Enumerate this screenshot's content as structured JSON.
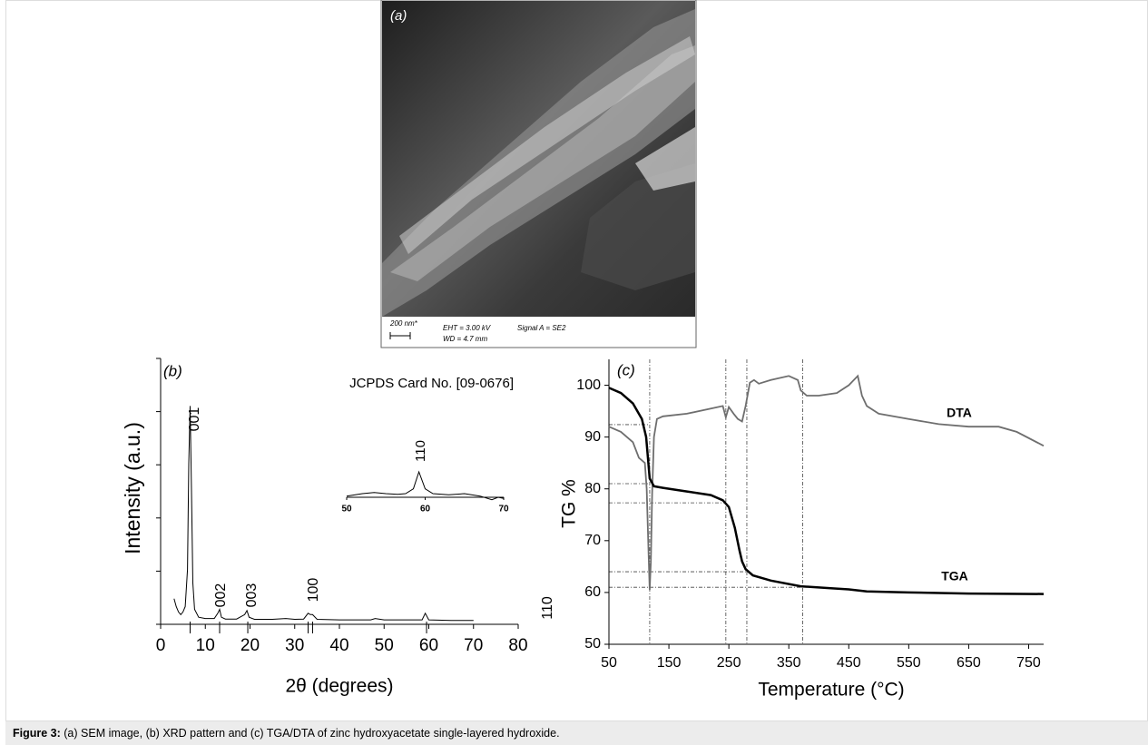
{
  "sem_image": {
    "panel": "(a)",
    "scale": "200 nm*",
    "eht": "EHT =  3.00 kV",
    "signal": "Signal A = SE2",
    "wd": "WD =  4.7 mm"
  },
  "chart_data": [
    {
      "type": "line",
      "panel": "(b)",
      "annotation": "JCPDS Card No. [09-0676]",
      "xlabel": "2θ (degrees)",
      "ylabel": "Intensity (a.u.)",
      "xlim": [
        0,
        80
      ],
      "xticks": [
        0,
        10,
        20,
        30,
        40,
        50,
        60,
        70,
        80
      ],
      "ylim": [
        0,
        100
      ],
      "color": "#000000",
      "x": [
        3,
        3.5,
        4,
        4.5,
        5,
        5.5,
        6,
        6.3,
        6.6,
        6.9,
        7.2,
        7.6,
        8.5,
        10,
        12,
        12.8,
        13.2,
        13.6,
        14.5,
        17,
        18.8,
        19.3,
        19.8,
        21,
        25,
        28,
        30,
        32,
        33,
        33.5,
        34,
        35,
        40,
        47,
        48,
        50,
        55,
        58.5,
        59.2,
        60,
        65,
        70
      ],
      "values": [
        9,
        6,
        4,
        3,
        4,
        6,
        20,
        60,
        82,
        50,
        15,
        5,
        2,
        1.5,
        1.5,
        3.5,
        5,
        2,
        1.3,
        1.3,
        3,
        4.5,
        2,
        1.2,
        1.2,
        1.5,
        1.2,
        1.3,
        3.5,
        3,
        3,
        1.2,
        1,
        1,
        1.5,
        1,
        1,
        1,
        3.5,
        1,
        0.8,
        0.8
      ],
      "reference_peaks": [
        6.6,
        13.2,
        19.5,
        33,
        34,
        59.5
      ],
      "peak_labels": [
        "001",
        "002",
        "003",
        "100",
        "110"
      ],
      "inset": {
        "xlim": [
          50,
          70
        ],
        "xticks": [
          50,
          60,
          70
        ],
        "ylim": [
          0,
          30
        ],
        "label": "110",
        "x": [
          50,
          52,
          53.5,
          55,
          56.5,
          57.5,
          58.5,
          59.2,
          60,
          61,
          63,
          65,
          67,
          68.5,
          69.3,
          70
        ],
        "values": [
          4,
          6,
          7,
          6,
          5.5,
          6,
          10,
          24,
          10,
          6,
          5,
          6,
          4,
          1,
          3,
          2
        ]
      }
    },
    {
      "type": "line",
      "panel": "(c)",
      "xlabel": "Temperature (°C)",
      "ylabel": "TG %",
      "xlim": [
        50,
        775
      ],
      "xticks": [
        50,
        150,
        250,
        350,
        450,
        550,
        650,
        750
      ],
      "ylim": [
        50,
        105
      ],
      "yticks": [
        50,
        60,
        70,
        80,
        90,
        100
      ],
      "series": [
        {
          "name": "DTA",
          "color": "#6e6e6e",
          "x": [
            50,
            70,
            90,
            100,
            105,
            110,
            113,
            116,
            118,
            120,
            122,
            125,
            130,
            140,
            180,
            220,
            240,
            245,
            250,
            258,
            265,
            272,
            278,
            285,
            292,
            300,
            320,
            350,
            365,
            370,
            380,
            400,
            430,
            450,
            465,
            472,
            480,
            500,
            550,
            600,
            650,
            700,
            730,
            775
          ],
          "values": [
            92,
            91,
            89,
            86,
            85.5,
            85,
            80,
            68,
            60.5,
            66,
            79,
            90,
            93.5,
            94,
            94.5,
            95.5,
            96,
            93.8,
            95.8,
            94.5,
            93.5,
            93,
            96,
            100.5,
            101,
            100.3,
            101,
            101.8,
            101,
            99,
            98,
            98,
            98.5,
            100,
            101.8,
            98,
            96,
            94.5,
            93.5,
            92.5,
            92,
            92,
            91,
            88.3
          ]
        },
        {
          "name": "TGA",
          "color": "#000000",
          "x": [
            50,
            70,
            90,
            105,
            112,
            118,
            125,
            140,
            180,
            220,
            240,
            250,
            260,
            268,
            272,
            278,
            290,
            320,
            370,
            420,
            450,
            480,
            550,
            650,
            775
          ],
          "values": [
            99.5,
            98.5,
            96.5,
            93.5,
            90,
            82,
            80.5,
            80.2,
            79.5,
            78.8,
            77.8,
            76.5,
            72.5,
            68,
            66,
            64.5,
            63.3,
            62.3,
            61.2,
            60.8,
            60.6,
            60.2,
            60,
            59.8,
            59.7
          ]
        }
      ],
      "guide_x": [
        118,
        245,
        280,
        373
      ],
      "guide_y": [
        {
          "value": 92.4,
          "to": 118
        },
        {
          "value": 81,
          "to": 118
        },
        {
          "value": 77.3,
          "to": 245
        },
        {
          "value": 64,
          "to": 280
        },
        {
          "value": 61,
          "to": 373
        }
      ]
    }
  ],
  "caption": {
    "label": "Figure 3:",
    "text": " (a) SEM image, (b) XRD pattern and (c) TGA/DTA of zinc hydroxyacetate single-layered hydroxide."
  }
}
